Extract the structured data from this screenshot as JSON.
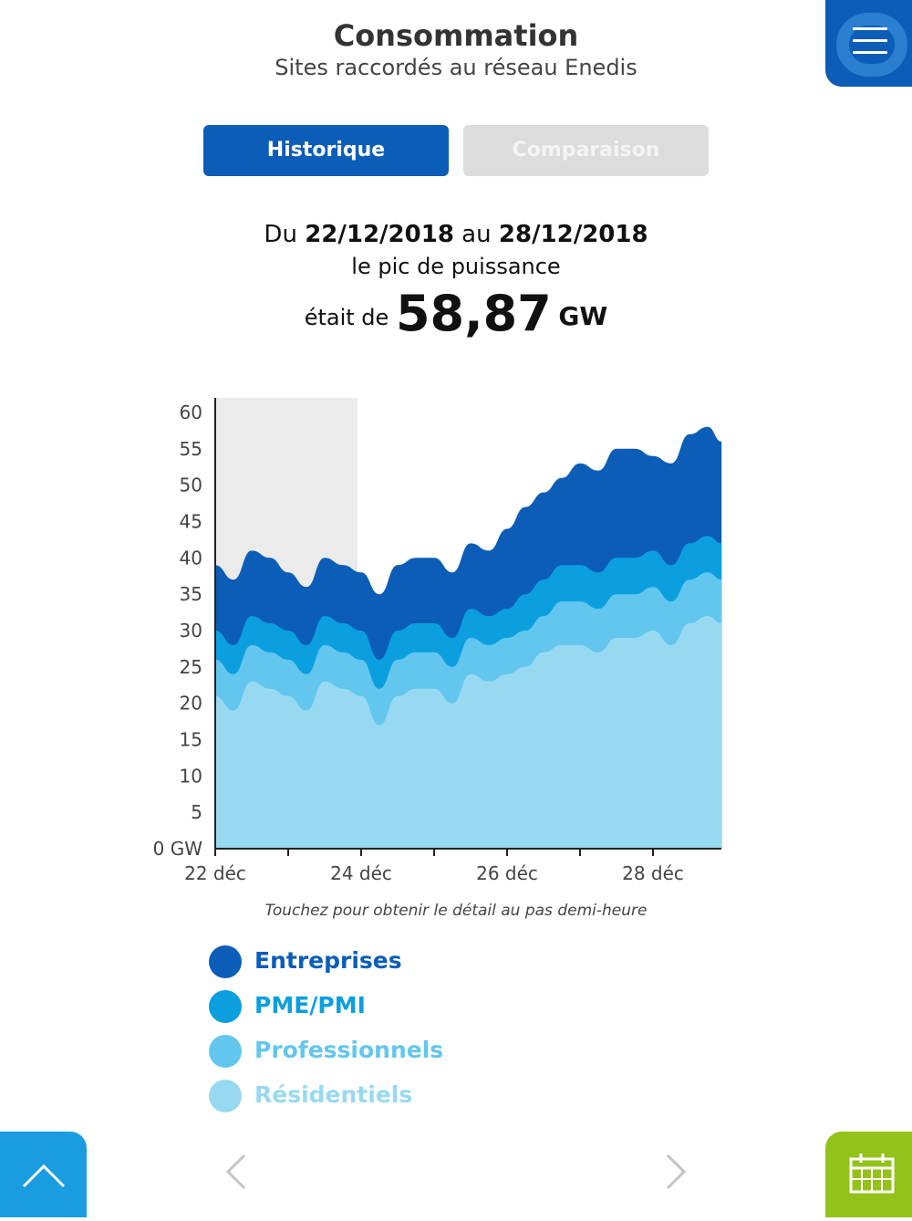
{
  "header": {
    "title": "Consommation",
    "subtitle": "Sites raccordés au réseau Enedis",
    "menu_icon": "hamburger-menu-icon"
  },
  "tabs": [
    {
      "label": "Historique",
      "active": true
    },
    {
      "label": "Comparaison",
      "active": false
    }
  ],
  "summary": {
    "prefix": "Du",
    "date_from": "22/12/2018",
    "middle": "au",
    "date_to": "28/12/2018",
    "line2": "le pic de puissance",
    "line3_prefix": "était de",
    "peak_value": "58,87",
    "peak_unit": "GW"
  },
  "colors": {
    "entreprises": "#0b5db8",
    "pme_pmi": "#0b9fe0",
    "professionnels": "#62c6ee",
    "residentiels": "#98d9f2",
    "highlight": "#ebebeb",
    "accent_blue": "#0b5db8",
    "green": "#93c21a"
  },
  "chart_data": {
    "type": "area",
    "stacked": true,
    "x_ticks": [
      "22 déc",
      "24 déc",
      "26 déc",
      "28 déc"
    ],
    "y_ticks": [
      "0 GW",
      "5",
      "10",
      "15",
      "20",
      "25",
      "30",
      "35",
      "40",
      "45",
      "50",
      "55",
      "60"
    ],
    "ylim": [
      0,
      60
    ],
    "x_range_days": [
      22,
      28.94
    ],
    "highlight_range_days": [
      22,
      23.95
    ],
    "x": [
      22.0,
      22.25,
      22.5,
      22.75,
      23.0,
      23.25,
      23.5,
      23.75,
      24.0,
      24.25,
      24.5,
      24.75,
      25.0,
      25.25,
      25.5,
      25.75,
      26.0,
      26.25,
      26.5,
      26.75,
      27.0,
      27.25,
      27.5,
      27.75,
      28.0,
      28.25,
      28.5,
      28.75,
      28.94
    ],
    "series": [
      {
        "name": "Résidentiels",
        "values": [
          21,
          19,
          23,
          22,
          21,
          19,
          23,
          22,
          21,
          17,
          21,
          22,
          22,
          20,
          24,
          23,
          24,
          25,
          27,
          28,
          28,
          27,
          29,
          29,
          30,
          28,
          31,
          32,
          31
        ]
      },
      {
        "name": "Professionnels",
        "values": [
          5,
          5,
          5,
          5,
          5,
          5,
          5,
          5,
          5,
          5,
          5,
          5,
          5,
          5,
          5,
          5,
          5,
          5,
          5,
          6,
          6,
          6,
          6,
          6,
          6,
          6,
          6,
          6,
          6
        ]
      },
      {
        "name": "PME/PMI",
        "values": [
          4,
          4,
          4,
          4,
          4,
          4,
          4,
          4,
          4,
          4,
          4,
          4,
          4,
          4,
          4,
          4,
          4,
          5,
          5,
          5,
          5,
          5,
          5,
          5,
          5,
          5,
          5,
          5,
          5
        ]
      },
      {
        "name": "Entreprises",
        "values": [
          9,
          9,
          9,
          9,
          8,
          8,
          8,
          8,
          8,
          9,
          9,
          9,
          9,
          9,
          9,
          9,
          11,
          12,
          12,
          12,
          14,
          14,
          15,
          15,
          13,
          14,
          15,
          15,
          14
        ]
      }
    ]
  },
  "hint": "Touchez pour obtenir le détail au pas demi-heure",
  "legend": [
    {
      "label": "Entreprises",
      "color": "#0b5db8"
    },
    {
      "label": "PME/PMI",
      "color": "#0b9fe0"
    },
    {
      "label": "Professionnels",
      "color": "#62c6ee"
    },
    {
      "label": "Résidentiels",
      "color": "#98d9f2"
    }
  ],
  "footer": {
    "up_icon": "chevron-up-icon",
    "prev_icon": "chevron-left-icon",
    "next_icon": "chevron-right-icon",
    "calendar_icon": "calendar-icon"
  }
}
